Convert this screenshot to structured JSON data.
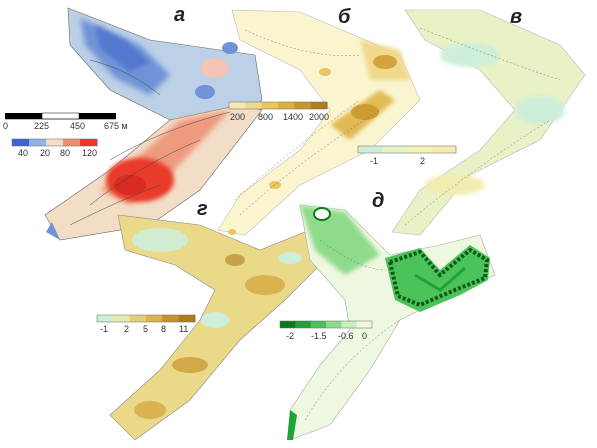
{
  "panels": {
    "a": "а",
    "b": "б",
    "v": "в",
    "g": "г",
    "d": "д"
  },
  "scalebar": {
    "ticks": [
      "0",
      "225",
      "450",
      "675 м"
    ]
  },
  "legend_a": {
    "labels": [
      "40",
      "20",
      "80",
      "120"
    ],
    "colors": [
      "#3a63d6",
      "#8fb3e8",
      "#f5dcc8",
      "#ee8d73",
      "#e83a2c"
    ]
  },
  "legend_b": {
    "labels": [
      "200",
      "800",
      "1400",
      "2000"
    ],
    "colors": [
      "#f6e9b2",
      "#f1d98a",
      "#e9c660",
      "#ddae3d",
      "#c9962a",
      "#b07e1f"
    ]
  },
  "legend_v": {
    "labels": [
      "-1",
      "2"
    ],
    "colors": [
      "#cdeed9",
      "#e6f3c9",
      "#f3f2b7",
      "#f6ebb0"
    ]
  },
  "legend_g": {
    "labels": [
      "-1",
      "2",
      "5",
      "8",
      "11"
    ],
    "colors": [
      "#cdeed9",
      "#e9e8b2",
      "#e3cf7a",
      "#d8b350",
      "#c7932c",
      "#ae7b20"
    ]
  },
  "legend_d": {
    "labels": [
      "-2",
      "-1.5",
      "-0.6",
      "0"
    ],
    "colors": [
      "#0b7a1d",
      "#1fa334",
      "#4cc25a",
      "#8edb8c",
      "#c7efbf",
      "#eef7df"
    ]
  }
}
